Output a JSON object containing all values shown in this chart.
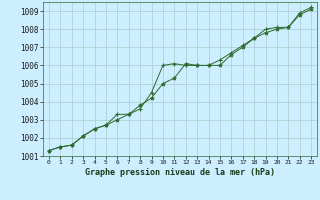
{
  "title": "",
  "xlabel": "Graphe pression niveau de la mer (hPa)",
  "background_color": "#cceeff",
  "plot_bg_color": "#cceeff",
  "line_color": "#2d6a2d",
  "marker_color": "#2d6a2d",
  "grid_color": "#aacccc",
  "ylim": [
    1001,
    1009.5
  ],
  "xlim": [
    -0.5,
    23.5
  ],
  "yticks": [
    1001,
    1002,
    1003,
    1004,
    1005,
    1006,
    1007,
    1008,
    1009
  ],
  "xtick_labels": [
    "0",
    "1",
    "2",
    "3",
    "4",
    "5",
    "6",
    "7",
    "8",
    "9",
    "10",
    "11",
    "12",
    "13",
    "14",
    "15",
    "16",
    "17",
    "18",
    "19",
    "20",
    "21",
    "22",
    "23"
  ],
  "series1_x": [
    0,
    1,
    2,
    3,
    4,
    5,
    6,
    7,
    8,
    9,
    10,
    11,
    12,
    13,
    14,
    15,
    16,
    17,
    18,
    19,
    20,
    21,
    22,
    23
  ],
  "series1_y": [
    1001.3,
    1001.5,
    1001.6,
    1002.1,
    1002.5,
    1002.7,
    1003.0,
    1003.3,
    1003.8,
    1004.2,
    1005.0,
    1005.3,
    1006.1,
    1006.0,
    1006.0,
    1006.0,
    1006.6,
    1007.0,
    1007.5,
    1007.8,
    1008.0,
    1008.1,
    1008.8,
    1009.1
  ],
  "series2_x": [
    0,
    1,
    2,
    3,
    4,
    5,
    6,
    7,
    8,
    9,
    10,
    11,
    12,
    13,
    14,
    15,
    16,
    17,
    18,
    19,
    20,
    21,
    22,
    23
  ],
  "series2_y": [
    1001.3,
    1001.5,
    1001.6,
    1002.1,
    1002.5,
    1002.7,
    1003.3,
    1003.3,
    1003.6,
    1004.5,
    1006.0,
    1006.1,
    1006.0,
    1006.0,
    1006.0,
    1006.3,
    1006.7,
    1007.1,
    1007.5,
    1008.0,
    1008.1,
    1008.1,
    1008.9,
    1009.2
  ]
}
